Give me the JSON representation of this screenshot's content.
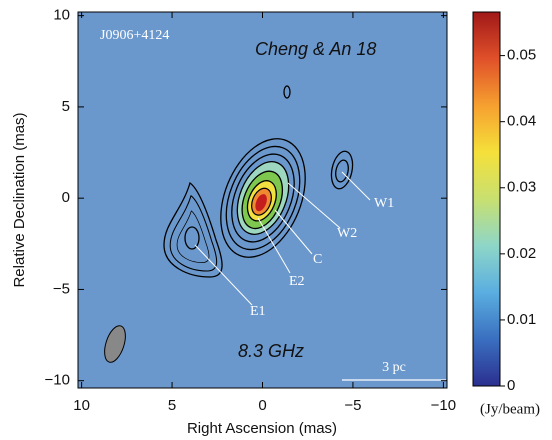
{
  "chart_data": {
    "type": "map",
    "title": "J0906+4124",
    "annotations": [
      "Cheng & An 18",
      "8.3 GHz"
    ],
    "scale_bar_label": "3 pc",
    "components": [
      "E1",
      "E2",
      "C",
      "W2",
      "W1"
    ],
    "x_label": "Right Ascension (mas)",
    "y_label": "Relative Declination (mas)",
    "xlim": [
      10.2,
      -10.2
    ],
    "xticks": [
      10,
      5,
      0,
      {
        "value": -5,
        "label": "−5"
      },
      {
        "value": -10,
        "label": "−10"
      }
    ],
    "ylim": [
      -10.4,
      10.2
    ],
    "yticks": [
      {
        "value": -10,
        "label": "−10"
      },
      {
        "value": -5,
        "label": "−5"
      },
      0,
      5,
      10
    ],
    "colorbar": {
      "label": "(Jy/beam)",
      "clim": [
        0,
        0.0566
      ],
      "ticks": [
        0,
        0.01,
        0.02,
        0.03,
        0.04,
        0.05
      ],
      "colormap": "jet"
    }
  }
}
